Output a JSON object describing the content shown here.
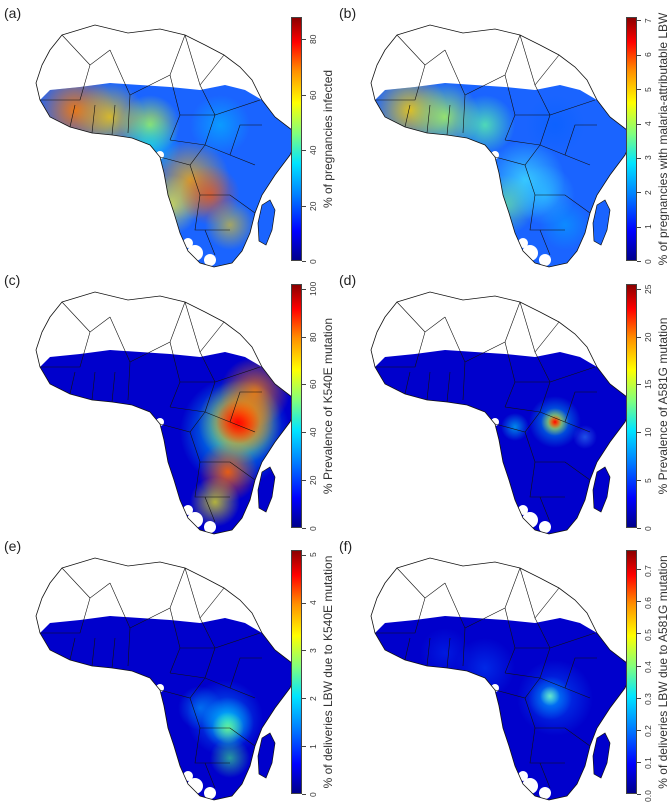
{
  "panels": [
    {
      "id": "a",
      "label": "(a)",
      "legend_title": "% of pregnancies infected",
      "ticks": [
        "0",
        "20",
        "40",
        "60",
        "80"
      ],
      "tick_values": [
        0,
        20,
        40,
        60,
        80
      ],
      "max": 88,
      "scheme": "pregnancy-infection"
    },
    {
      "id": "b",
      "label": "(b)",
      "legend_title": "% of pregnancies with malaria-attributable LBW",
      "ticks": [
        "0",
        "1",
        "2",
        "3",
        "4",
        "5",
        "6",
        "7"
      ],
      "tick_values": [
        0,
        1,
        2,
        3,
        4,
        5,
        6,
        7
      ],
      "max": 7.1,
      "scheme": "pregnancy-lbw"
    },
    {
      "id": "c",
      "label": "(c)",
      "legend_title": "% Prevalence of K540E mutation",
      "ticks": [
        "0",
        "20",
        "40",
        "60",
        "80",
        "100"
      ],
      "tick_values": [
        0,
        20,
        40,
        60,
        80,
        100
      ],
      "max": 102,
      "scheme": "k540e-prevalence"
    },
    {
      "id": "d",
      "label": "(d)",
      "legend_title": "% Prevalence of A581G mutation",
      "ticks": [
        "0",
        "5",
        "10",
        "15",
        "20",
        "25"
      ],
      "tick_values": [
        0,
        5,
        10,
        15,
        20,
        25
      ],
      "max": 25.5,
      "scheme": "a581g-prevalence"
    },
    {
      "id": "e",
      "label": "(e)",
      "legend_title": "% of deliveries LBW due to K540E mutation",
      "ticks": [
        "0",
        "1",
        "2",
        "3",
        "4",
        "5"
      ],
      "tick_values": [
        0,
        1,
        2,
        3,
        4,
        5
      ],
      "max": 5.1,
      "scheme": "k540e-lbw"
    },
    {
      "id": "f",
      "label": "(f)",
      "legend_title": "% of deliveries LBW due to A581G mutation",
      "ticks": [
        "0.0",
        "0.1",
        "0.2",
        "0.3",
        "0.4",
        "0.5",
        "0.6",
        "0.7"
      ],
      "tick_values": [
        0,
        0.1,
        0.2,
        0.3,
        0.4,
        0.5,
        0.6,
        0.7
      ],
      "max": 0.76,
      "scheme": "a581g-lbw"
    }
  ]
}
